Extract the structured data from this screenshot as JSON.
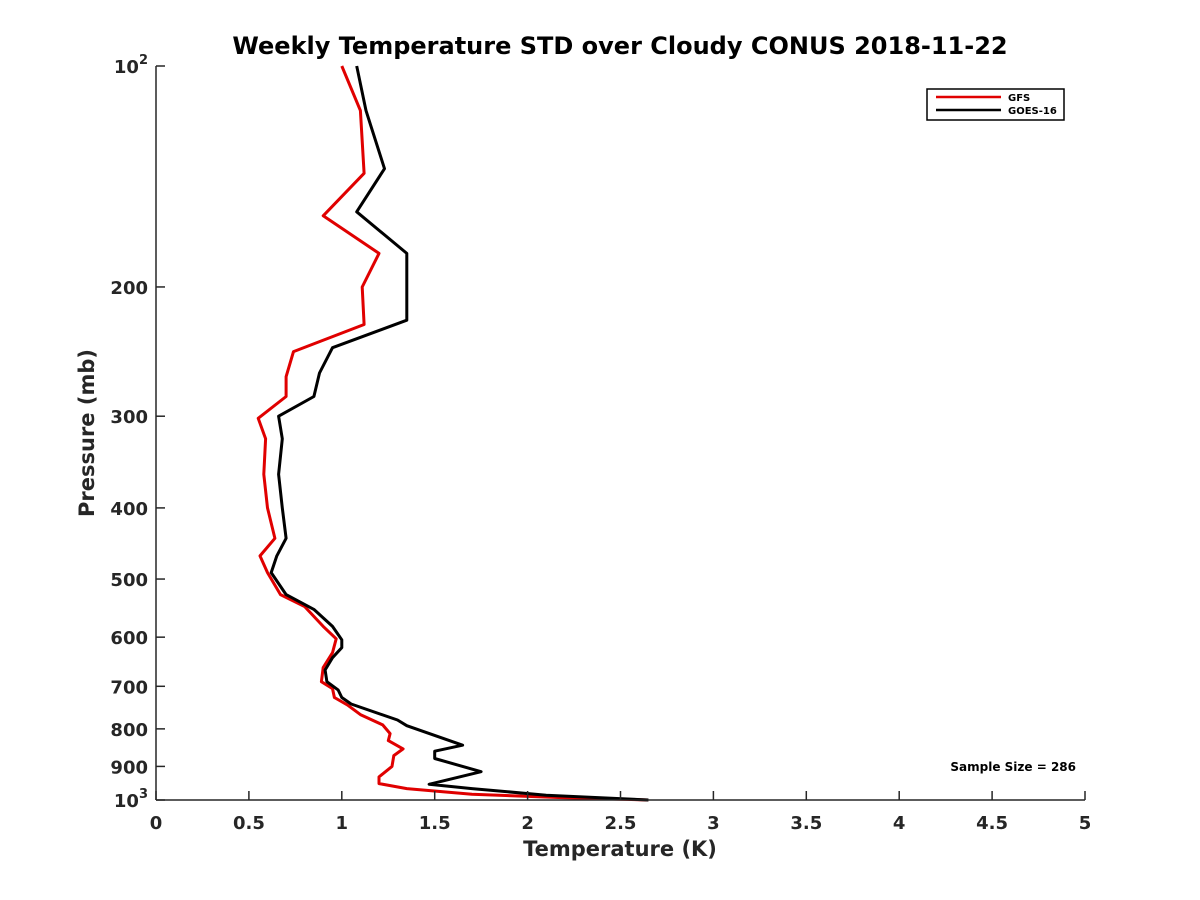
{
  "chart_data": {
    "type": "line",
    "title": "Weekly Temperature STD over Cloudy CONUS 2018-11-22",
    "xlabel": "Temperature (K)",
    "ylabel": "Pressure (mb)",
    "xlim": [
      0,
      5
    ],
    "ylim": [
      100,
      1000
    ],
    "y_scale": "log",
    "y_reversed": true,
    "grid": false,
    "legend_position": "top-right",
    "x_ticks": [
      0,
      0.5,
      1,
      1.5,
      2,
      2.5,
      3,
      3.5,
      4,
      4.5,
      5
    ],
    "x_tick_labels": [
      "0",
      "0.5",
      "1",
      "1.5",
      "2",
      "2.5",
      "3",
      "3.5",
      "4",
      "4.5",
      "5"
    ],
    "y_ticks": [
      100,
      200,
      300,
      400,
      500,
      600,
      700,
      800,
      900,
      1000
    ],
    "y_tick_labels": [
      {
        "base": "10",
        "exp": "2"
      },
      {
        "base": "200",
        "exp": ""
      },
      {
        "base": "300",
        "exp": ""
      },
      {
        "base": "400",
        "exp": ""
      },
      {
        "base": "500",
        "exp": ""
      },
      {
        "base": "600",
        "exp": ""
      },
      {
        "base": "700",
        "exp": ""
      },
      {
        "base": "800",
        "exp": ""
      },
      {
        "base": "900",
        "exp": ""
      },
      {
        "base": "10",
        "exp": "3"
      }
    ],
    "annotation": "Sample Size = 286",
    "series": [
      {
        "name": "GFS",
        "color": "#e00000",
        "points": [
          [
            1.0,
            100
          ],
          [
            1.1,
            115
          ],
          [
            1.12,
            140
          ],
          [
            0.9,
            160
          ],
          [
            1.2,
            180
          ],
          [
            1.11,
            200
          ],
          [
            1.12,
            225
          ],
          [
            0.74,
            245
          ],
          [
            0.7,
            265
          ],
          [
            0.7,
            282
          ],
          [
            0.55,
            302
          ],
          [
            0.59,
            322
          ],
          [
            0.58,
            360
          ],
          [
            0.6,
            400
          ],
          [
            0.64,
            440
          ],
          [
            0.56,
            465
          ],
          [
            0.6,
            490
          ],
          [
            0.67,
            525
          ],
          [
            0.8,
            545
          ],
          [
            0.9,
            580
          ],
          [
            0.97,
            603
          ],
          [
            0.95,
            630
          ],
          [
            0.9,
            660
          ],
          [
            0.89,
            690
          ],
          [
            0.95,
            705
          ],
          [
            0.96,
            725
          ],
          [
            1.03,
            742
          ],
          [
            1.1,
            765
          ],
          [
            1.22,
            790
          ],
          [
            1.26,
            812
          ],
          [
            1.25,
            830
          ],
          [
            1.33,
            852
          ],
          [
            1.28,
            870
          ],
          [
            1.27,
            900
          ],
          [
            1.2,
            930
          ],
          [
            1.2,
            950
          ],
          [
            1.35,
            965
          ],
          [
            1.7,
            982
          ],
          [
            2.2,
            993
          ],
          [
            2.65,
            1000
          ]
        ]
      },
      {
        "name": "GOES-16",
        "color": "#000000",
        "points": [
          [
            1.08,
            100
          ],
          [
            1.13,
            115
          ],
          [
            1.23,
            138
          ],
          [
            1.08,
            158
          ],
          [
            1.35,
            180
          ],
          [
            1.35,
            205
          ],
          [
            1.35,
            222
          ],
          [
            0.95,
            242
          ],
          [
            0.88,
            262
          ],
          [
            0.85,
            282
          ],
          [
            0.66,
            300
          ],
          [
            0.68,
            322
          ],
          [
            0.66,
            360
          ],
          [
            0.68,
            400
          ],
          [
            0.7,
            440
          ],
          [
            0.65,
            465
          ],
          [
            0.62,
            490
          ],
          [
            0.7,
            525
          ],
          [
            0.85,
            550
          ],
          [
            0.95,
            580
          ],
          [
            1.0,
            605
          ],
          [
            1.0,
            620
          ],
          [
            0.95,
            640
          ],
          [
            0.91,
            665
          ],
          [
            0.92,
            690
          ],
          [
            0.98,
            708
          ],
          [
            1.0,
            725
          ],
          [
            1.05,
            740
          ],
          [
            1.3,
            778
          ],
          [
            1.35,
            792
          ],
          [
            1.65,
            842
          ],
          [
            1.5,
            858
          ],
          [
            1.5,
            878
          ],
          [
            1.75,
            915
          ],
          [
            1.47,
            952
          ],
          [
            1.7,
            965
          ],
          [
            2.1,
            985
          ],
          [
            2.65,
            1000
          ]
        ]
      }
    ]
  }
}
